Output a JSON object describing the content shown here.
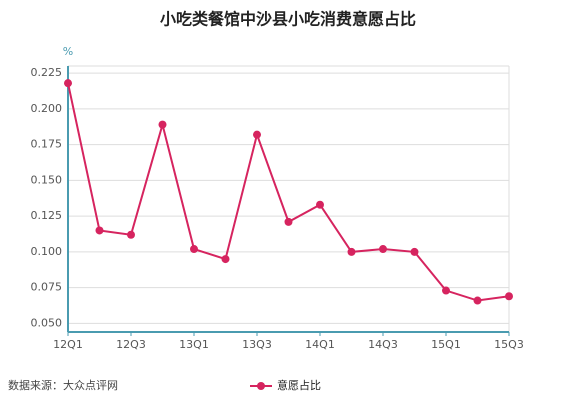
{
  "chart_data": {
    "type": "line",
    "title": "小吃类餐馆中沙县小吃消费意愿占比",
    "y_unit": "%",
    "source": "数据来源：大众点评网",
    "categories": [
      "12Q1",
      null,
      "12Q3",
      null,
      "13Q1",
      null,
      "13Q3",
      null,
      "14Q1",
      null,
      "14Q3",
      null,
      "15Q1",
      null,
      "15Q3"
    ],
    "series": [
      {
        "name": "意愿占比",
        "color": "#d6245f",
        "values": [
          0.218,
          0.115,
          0.112,
          0.189,
          0.102,
          0.095,
          0.182,
          0.121,
          0.133,
          0.1,
          0.102,
          0.1,
          0.073,
          0.066,
          0.069
        ]
      }
    ],
    "ylim": [
      0.044,
      0.23
    ],
    "yticks": [
      {
        "value": 0.05,
        "label": "0.050"
      },
      0.075,
      {
        "value": 0.1,
        "label": "0.100"
      },
      0.125,
      {
        "value": 0.15,
        "label": "0.150"
      },
      0.175,
      {
        "value": 0.2,
        "label": "0.200"
      },
      0.225
    ],
    "grid": true
  }
}
